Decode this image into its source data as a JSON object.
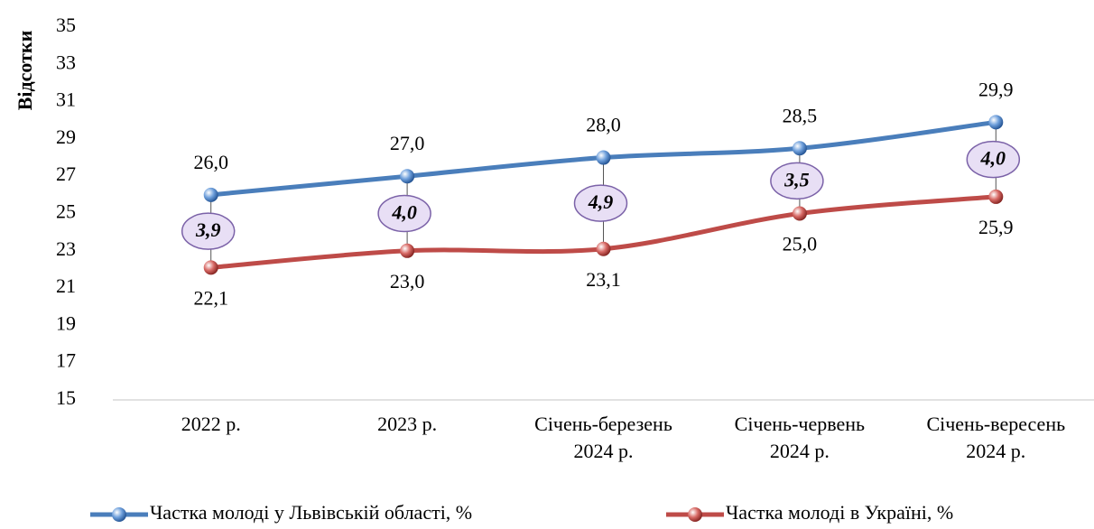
{
  "chart_data": {
    "type": "line",
    "y_label": "Відсотки",
    "categories": [
      "2022 р.",
      "2023 р.",
      "Січень-березень\n2024 р.",
      "Січень-червень\n2024 р.",
      "Січень-вересень\n2024 р."
    ],
    "series": [
      {
        "name": "Частка молоді у Львівській області, %",
        "color": "#4a7ebb",
        "values": [
          26.0,
          27.0,
          28.0,
          28.5,
          29.9
        ],
        "value_labels": [
          "26,0",
          "27,0",
          "28,0",
          "28,5",
          "29,9"
        ]
      },
      {
        "name": "Частка молоді в Україні, %",
        "color": "#be4b48",
        "values": [
          22.1,
          23.0,
          23.1,
          25.0,
          25.9
        ],
        "value_labels": [
          "22,1",
          "23,0",
          "23,1",
          "25,0",
          "25,9"
        ]
      }
    ],
    "differences": {
      "values": [
        3.9,
        4.0,
        4.9,
        3.5,
        4.0
      ],
      "value_labels": [
        "3,9",
        "4,0",
        "4,9",
        "3,5",
        "4,0"
      ]
    },
    "ylim": [
      15,
      35
    ],
    "yticks": [
      15,
      17,
      19,
      21,
      23,
      25,
      27,
      29,
      31,
      33,
      35
    ],
    "grid": false,
    "legend": "bottom"
  }
}
